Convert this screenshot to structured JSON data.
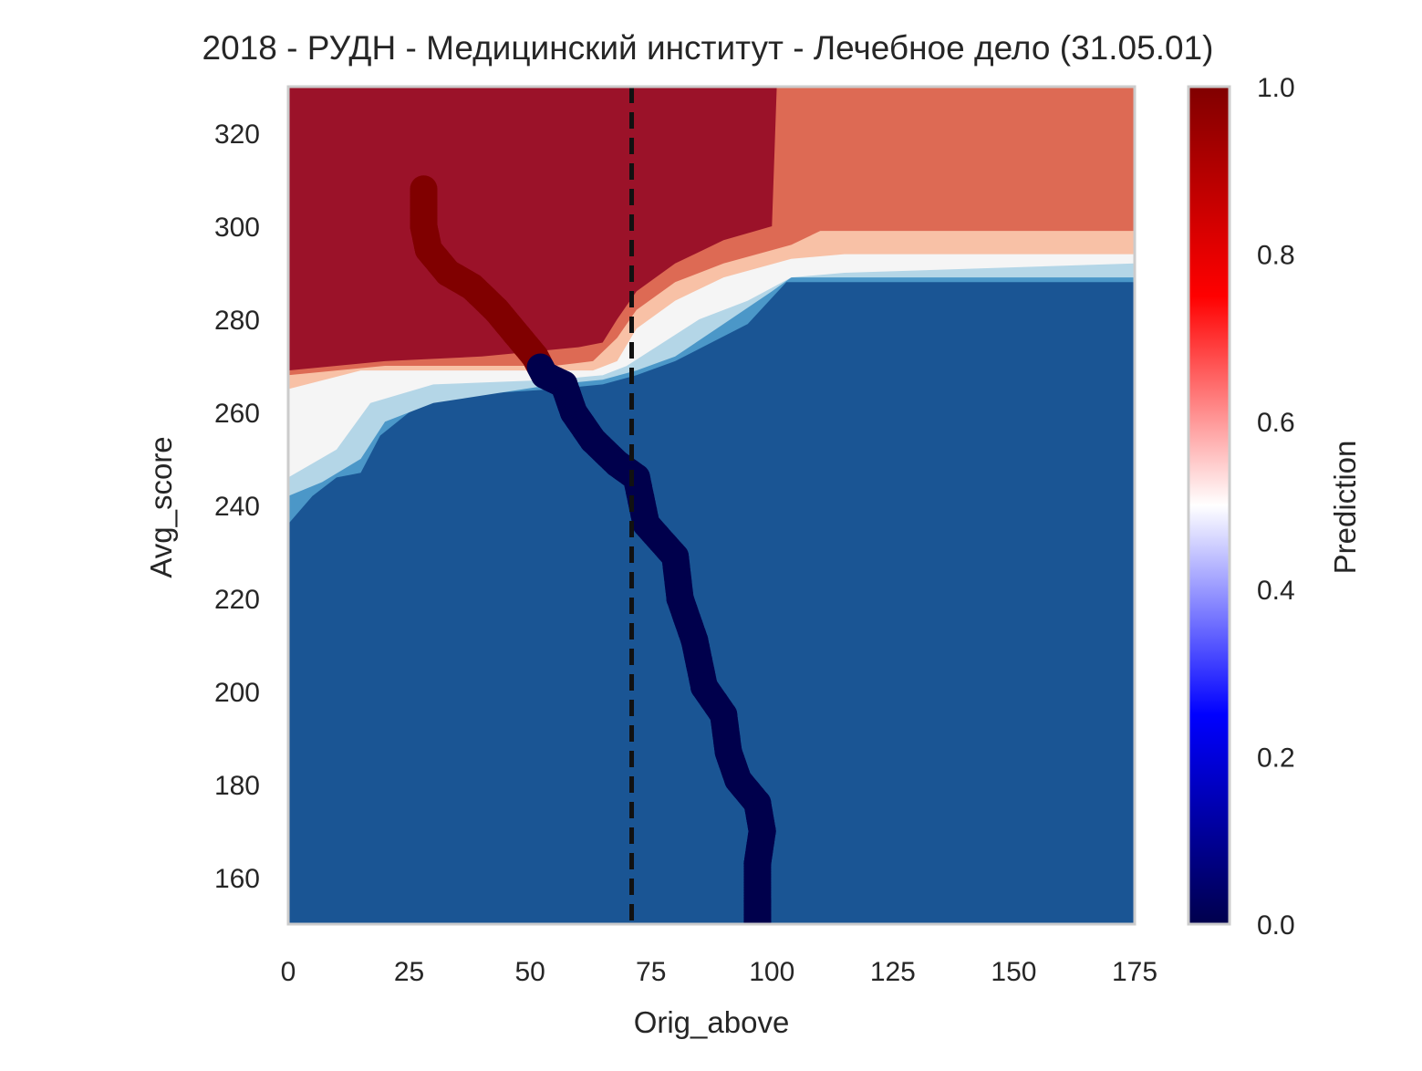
{
  "chart_data": {
    "type": "heatmap",
    "title": "2018 - РУДН - Медицинский институт - Лечебное дело (31.05.01)",
    "xlabel": "Orig_above",
    "ylabel": "Avg_score",
    "xlim": [
      0,
      175
    ],
    "ylim": [
      150,
      330
    ],
    "xticks": [
      0,
      25,
      50,
      75,
      100,
      125,
      150,
      175
    ],
    "yticks": [
      160,
      180,
      200,
      220,
      240,
      260,
      280,
      300,
      320
    ],
    "grid": false,
    "colorbar": {
      "label": "Prediction",
      "range": [
        0,
        1
      ],
      "ticks": [
        "0.0",
        "0.2",
        "0.4",
        "0.6",
        "0.8",
        "1.0"
      ],
      "colormap": "seismic"
    },
    "contour_levels_colors": {
      "0.0-0.1": "#1a5594",
      "0.1-0.2": "#4b97c8",
      "0.2-0.4": "#b4d6e7",
      "0.4-0.6": "#f5f5f5",
      "0.6-0.8": "#f8c1a6",
      "0.8-0.9": "#dd6a54",
      "0.9-1.0": "#9b1229"
    },
    "boundary_curves": {
      "upper_09": [
        [
          0,
          269
        ],
        [
          20,
          271
        ],
        [
          40,
          272
        ],
        [
          50,
          273
        ],
        [
          60,
          274
        ],
        [
          65,
          275
        ],
        [
          68,
          280
        ],
        [
          72,
          286
        ],
        [
          80,
          292
        ],
        [
          90,
          297
        ],
        [
          100,
          300
        ],
        [
          101,
          330
        ]
      ],
      "upper_08": [
        [
          0,
          268
        ],
        [
          20,
          270
        ],
        [
          40,
          270
        ],
        [
          55,
          270
        ],
        [
          63,
          271
        ],
        [
          68,
          276
        ],
        [
          72,
          282
        ],
        [
          80,
          288
        ],
        [
          90,
          292
        ],
        [
          104,
          296
        ],
        [
          110,
          299
        ],
        [
          175,
          299
        ]
      ],
      "upper_06": [
        [
          0,
          265
        ],
        [
          15,
          269
        ],
        [
          30,
          269
        ],
        [
          45,
          269
        ],
        [
          55,
          269
        ],
        [
          63,
          269
        ],
        [
          68,
          271
        ],
        [
          72,
          278
        ],
        [
          80,
          284
        ],
        [
          90,
          289
        ],
        [
          104,
          293
        ],
        [
          115,
          294
        ],
        [
          175,
          294
        ]
      ],
      "mid_05": [
        [
          0,
          258
        ],
        [
          10,
          262
        ],
        [
          20,
          268
        ],
        [
          35,
          268
        ],
        [
          55,
          268
        ],
        [
          65,
          268
        ],
        [
          70,
          270
        ],
        [
          75,
          276
        ],
        [
          82,
          282
        ],
        [
          95,
          286
        ],
        [
          104,
          291
        ],
        [
          115,
          292
        ],
        [
          175,
          293
        ]
      ],
      "lower_04": [
        [
          0,
          246
        ],
        [
          10,
          252
        ],
        [
          17,
          262
        ],
        [
          30,
          266
        ],
        [
          55,
          267
        ],
        [
          65,
          268
        ],
        [
          70,
          270
        ],
        [
          76,
          274
        ],
        [
          85,
          280
        ],
        [
          95,
          284
        ],
        [
          104,
          289
        ],
        [
          115,
          290
        ],
        [
          175,
          292
        ]
      ],
      "lower_02": [
        [
          0,
          242
        ],
        [
          7,
          245
        ],
        [
          15,
          250
        ],
        [
          20,
          258
        ],
        [
          30,
          262
        ],
        [
          55,
          266
        ],
        [
          65,
          267
        ],
        [
          72,
          269
        ],
        [
          80,
          272
        ],
        [
          90,
          279
        ],
        [
          100,
          286
        ],
        [
          104,
          289
        ],
        [
          175,
          289
        ]
      ],
      "lower_01": [
        [
          0,
          236
        ],
        [
          5,
          242
        ],
        [
          10,
          246
        ],
        [
          15,
          247
        ],
        [
          19,
          255
        ],
        [
          25,
          260
        ],
        [
          30,
          263
        ],
        [
          40,
          264
        ],
        [
          55,
          265
        ],
        [
          65,
          266
        ],
        [
          72,
          268
        ],
        [
          80,
          271
        ],
        [
          95,
          279
        ],
        [
          103,
          288
        ],
        [
          175,
          288
        ]
      ]
    },
    "series": [
      {
        "type": "scatter",
        "points": [
          [
            28,
            308
          ],
          [
            28,
            300
          ],
          [
            29,
            295
          ],
          [
            33,
            290
          ],
          [
            38,
            287
          ],
          [
            43,
            282
          ],
          [
            47,
            277
          ],
          [
            51,
            272
          ],
          [
            53,
            268
          ],
          [
            57,
            266
          ],
          [
            59,
            260
          ],
          [
            63,
            254
          ],
          [
            68,
            249
          ],
          [
            72,
            246
          ],
          [
            74,
            236
          ],
          [
            80,
            229
          ],
          [
            81,
            220
          ],
          [
            84,
            211
          ],
          [
            86,
            201
          ],
          [
            90,
            195
          ],
          [
            91,
            187
          ],
          [
            93,
            181
          ],
          [
            97,
            176
          ],
          [
            98,
            170
          ],
          [
            97,
            163
          ],
          [
            97,
            155
          ],
          [
            97,
            150
          ]
        ],
        "colorscale_boundary": 270
      }
    ],
    "vline": {
      "x": 71,
      "style": "dashed"
    }
  }
}
